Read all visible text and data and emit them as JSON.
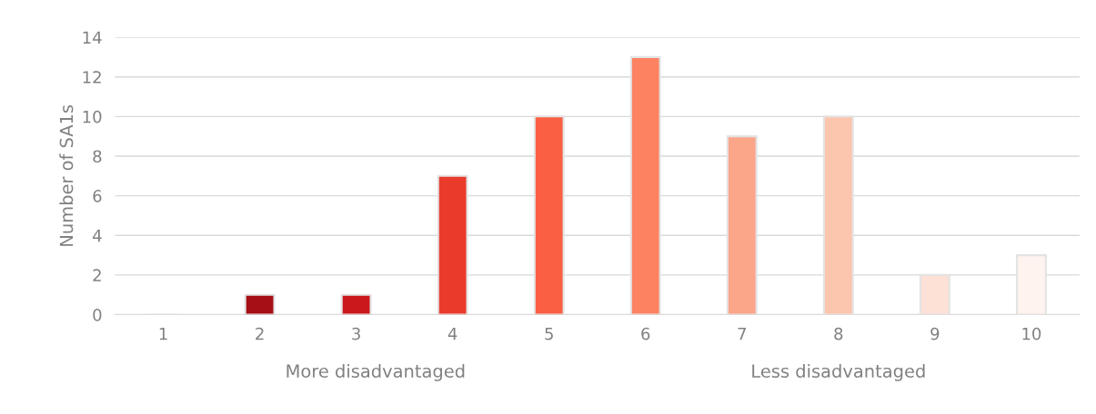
{
  "chart_data": {
    "type": "bar",
    "ylabel": "Number of SA1s",
    "categories": [
      "1",
      "2",
      "3",
      "4",
      "5",
      "6",
      "7",
      "8",
      "9",
      "10"
    ],
    "values": [
      0,
      1,
      1,
      7,
      10,
      13,
      9,
      10,
      2,
      3
    ],
    "colors": [
      null,
      "#a50f15",
      "#cb181d",
      "#ea3a2c",
      "#fa5f44",
      "#fc8262",
      "#fba589",
      "#fcc5ae",
      "#fde1d6",
      "#fef3ee"
    ],
    "ylim": [
      0,
      14
    ],
    "yticks": [
      0,
      2,
      4,
      6,
      8,
      10,
      12,
      14
    ],
    "grid": "y",
    "annotations": [
      "More disadvantaged",
      "Less disadvantaged"
    ]
  }
}
